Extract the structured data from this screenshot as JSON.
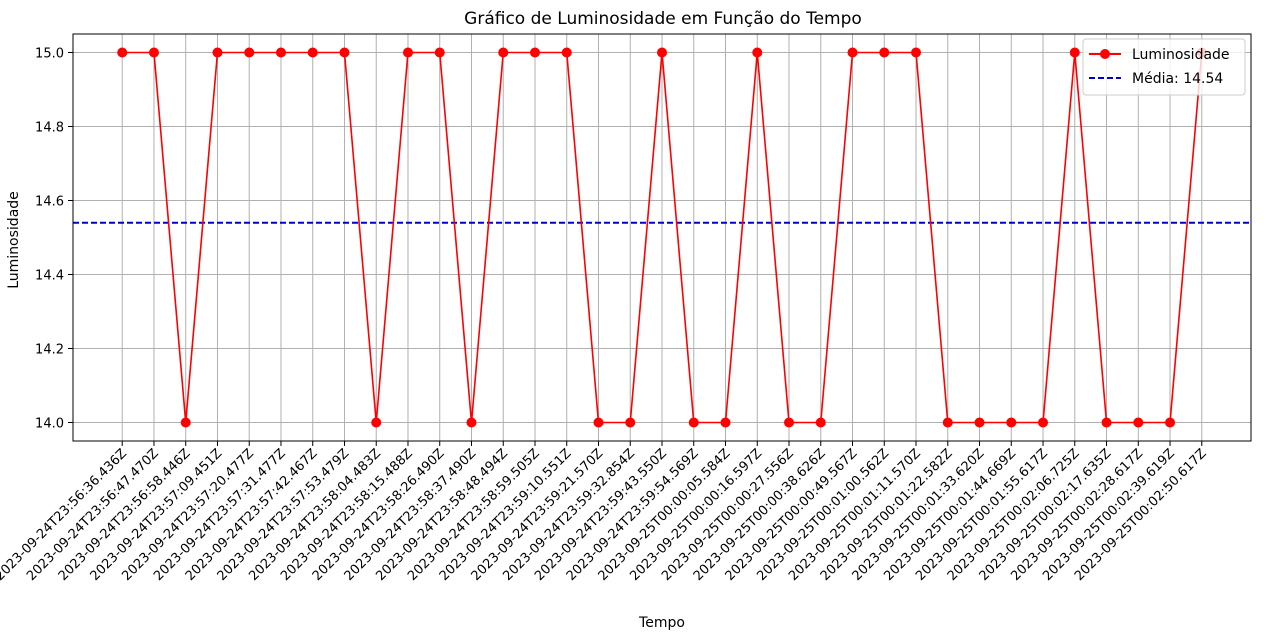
{
  "chart_data": {
    "type": "line",
    "title": "Gráfico de Luminosidade em Função do Tempo",
    "xlabel": "Tempo",
    "ylabel": "Luminosidade",
    "ylim": [
      13.95,
      15.05
    ],
    "yticks": [
      "14.0",
      "14.2",
      "14.4",
      "14.6",
      "14.8",
      "15.0"
    ],
    "grid": true,
    "legend_position": "top-right",
    "x": [
      "2023-09-24T23:56:36.436Z",
      "2023-09-24T23:56:47.470Z",
      "2023-09-24T23:56:58.446Z",
      "2023-09-24T23:57:09.451Z",
      "2023-09-24T23:57:20.477Z",
      "2023-09-24T23:57:31.477Z",
      "2023-09-24T23:57:42.467Z",
      "2023-09-24T23:57:53.479Z",
      "2023-09-24T23:58:04.483Z",
      "2023-09-24T23:58:15.488Z",
      "2023-09-24T23:58:26.490Z",
      "2023-09-24T23:58:37.490Z",
      "2023-09-24T23:58:48.494Z",
      "2023-09-24T23:58:59.505Z",
      "2023-09-24T23:59:10.551Z",
      "2023-09-24T23:59:21.570Z",
      "2023-09-24T23:59:32.854Z",
      "2023-09-24T23:59:43.550Z",
      "2023-09-24T23:59:54.569Z",
      "2023-09-25T00:00:05.584Z",
      "2023-09-25T00:00:16.597Z",
      "2023-09-25T00:00:27.556Z",
      "2023-09-25T00:00:38.626Z",
      "2023-09-25T00:00:49.567Z",
      "2023-09-25T00:01:00.562Z",
      "2023-09-25T00:01:11.570Z",
      "2023-09-25T00:01:22.582Z",
      "2023-09-25T00:01:33.620Z",
      "2023-09-25T00:01:44.669Z",
      "2023-09-25T00:01:55.617Z",
      "2023-09-25T00:02:06.725Z",
      "2023-09-25T00:02:17.635Z",
      "2023-09-25T00:02:28.617Z",
      "2023-09-25T00:02:39.619Z",
      "2023-09-25T00:02:50.617Z"
    ],
    "series": [
      {
        "name": "Luminosidade",
        "color": "#ff0000",
        "marker": "circle",
        "values": [
          15,
          15,
          14,
          15,
          15,
          15,
          15,
          15,
          14,
          15,
          15,
          14,
          15,
          15,
          15,
          14,
          14,
          15,
          14,
          14,
          15,
          14,
          14,
          15,
          15,
          15,
          14,
          14,
          14,
          14,
          15,
          14,
          14,
          14,
          15
        ]
      }
    ],
    "reference_lines": [
      {
        "name": "Média: 14.54",
        "value": 14.54,
        "color": "#0000cc",
        "style": "dashed"
      }
    ]
  }
}
